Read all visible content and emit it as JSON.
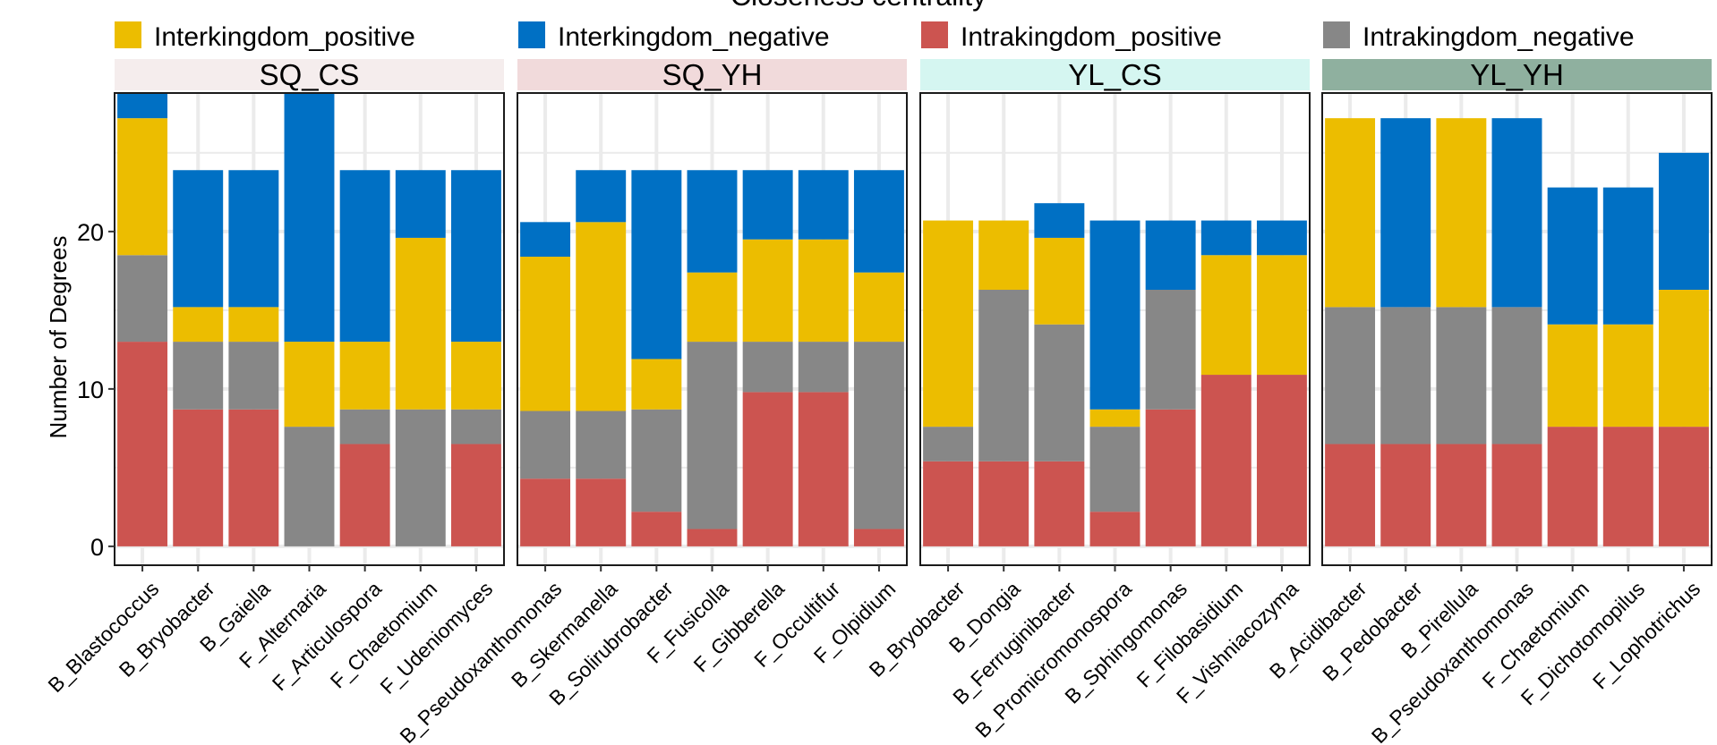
{
  "chart_data": {
    "type": "bar",
    "stacked": true,
    "title": "Closeness centrality",
    "ylabel": "Number of Degrees",
    "xlabel": "",
    "ylim": [
      -1.2,
      28.8
    ],
    "yticks": [
      0,
      10,
      20
    ],
    "grid": true,
    "legend_position": "top",
    "series": [
      {
        "key": "intra_pos",
        "name": "Intrakingdom_positive",
        "color": "#cc5450"
      },
      {
        "key": "intra_neg",
        "name": "Intrakingdom_negative",
        "color": "#878787"
      },
      {
        "key": "inter_pos",
        "name": "Interkingdom_positive",
        "color": "#ecbd00"
      },
      {
        "key": "inter_neg",
        "name": "Interkingdom_negative",
        "color": "#0070c4"
      }
    ],
    "legend_order": [
      "inter_pos",
      "inter_neg",
      "intra_pos",
      "intra_neg"
    ],
    "facets": [
      {
        "name": "SQ_CS",
        "strip_color": "#f5eded",
        "categories": [
          "B_Blastococcus",
          "B_Bryobacter",
          "B_Gaiella",
          "F_Alternaria",
          "F_Articulospora",
          "F_Chaetomium",
          "F_Udeniomyces"
        ],
        "values": {
          "intra_pos": [
            13,
            8.7,
            8.7,
            0,
            6.5,
            0,
            6.5
          ],
          "intra_neg": [
            5.5,
            4.3,
            4.3,
            7.6,
            2.2,
            8.7,
            2.2
          ],
          "inter_pos": [
            8.7,
            2.2,
            2.2,
            5.4,
            4.3,
            10.9,
            4.3
          ],
          "inter_neg": [
            1.6,
            8.7,
            8.7,
            15.8,
            10.9,
            4.3,
            10.9
          ]
        }
      },
      {
        "name": "SQ_YH",
        "strip_color": "#f1dadb",
        "categories": [
          "B_Pseudoxanthomonas",
          "B_Skermanella",
          "B_Solirubrobacter",
          "F_Fusicolla",
          "F_Gibberella",
          "F_Occultifur",
          "F_Olpidium"
        ],
        "values": {
          "intra_pos": [
            4.3,
            4.3,
            2.2,
            1.1,
            9.8,
            9.8,
            1.1
          ],
          "intra_neg": [
            4.3,
            4.3,
            6.5,
            11.9,
            3.2,
            3.2,
            11.9
          ],
          "inter_pos": [
            9.8,
            12.0,
            3.2,
            4.4,
            6.5,
            6.5,
            4.4
          ],
          "inter_neg": [
            2.2,
            3.3,
            12.0,
            6.5,
            4.4,
            4.4,
            6.5
          ]
        }
      },
      {
        "name": "YL_CS",
        "strip_color": "#d5f6f1",
        "categories": [
          "B_Bryobacter",
          "B_Dongia",
          "B_Ferruginibacter",
          "B_Promicromonospora",
          "B_Sphingomonas",
          "F_Filobasidium",
          "F_Vishniacozyma"
        ],
        "values": {
          "intra_pos": [
            5.4,
            5.4,
            5.4,
            2.2,
            8.7,
            10.9,
            10.9
          ],
          "intra_neg": [
            2.2,
            10.9,
            8.7,
            5.4,
            7.6,
            0,
            0
          ],
          "inter_pos": [
            13.1,
            4.4,
            5.5,
            1.1,
            0,
            7.6,
            7.6
          ],
          "inter_neg": [
            0,
            0,
            2.2,
            12.0,
            4.4,
            2.2,
            2.2
          ]
        }
      },
      {
        "name": "YL_YH",
        "strip_color": "#8fb09f",
        "categories": [
          "B_Acidibacter",
          "B_Pedobacter",
          "B_Pirellula",
          "B_Pseudoxanthomonas",
          "F_Chaetomium",
          "F_Dichotomopilus",
          "F_Lophotrichus"
        ],
        "values": {
          "intra_pos": [
            6.5,
            6.5,
            6.5,
            6.5,
            7.6,
            7.6,
            7.6
          ],
          "intra_neg": [
            8.7,
            8.7,
            8.7,
            8.7,
            0,
            0,
            0
          ],
          "inter_pos": [
            12.0,
            0,
            12.0,
            0,
            6.5,
            6.5,
            8.7
          ],
          "inter_neg": [
            0,
            12.0,
            0,
            12.0,
            8.7,
            8.7,
            8.7
          ]
        }
      }
    ]
  }
}
